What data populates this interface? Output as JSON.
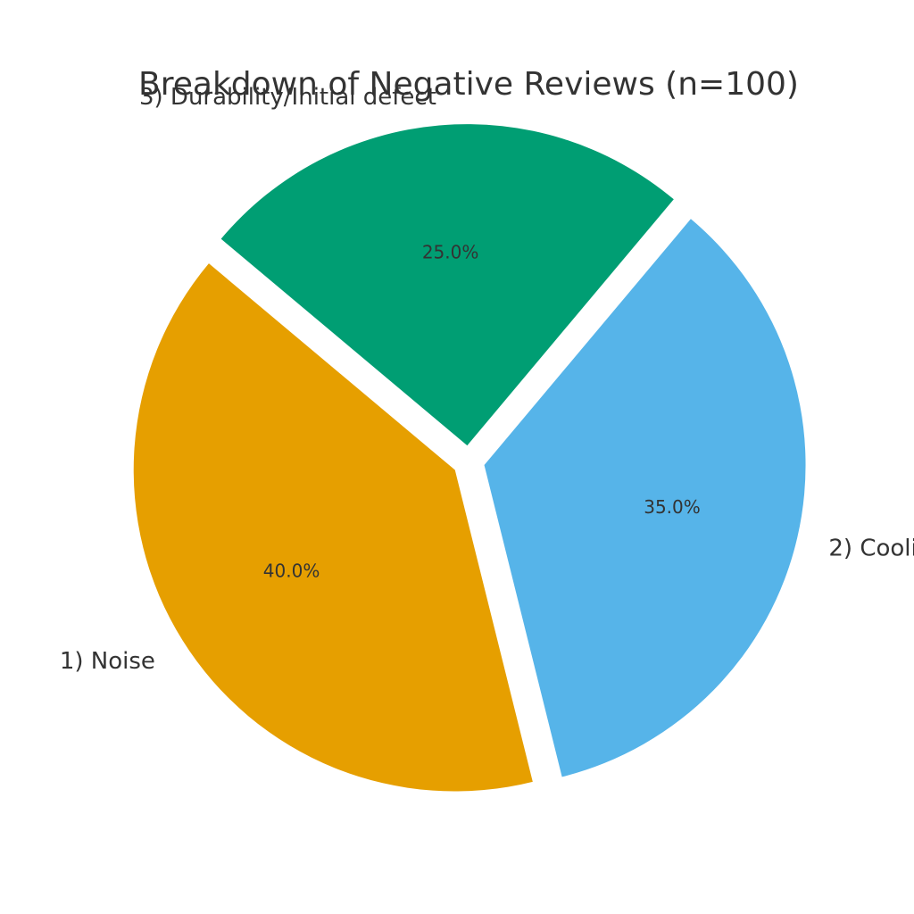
{
  "chart_data": {
    "type": "pie",
    "title": "Breakdown of Negative Reviews (n=100)",
    "categories": [
      "1) Noise",
      "2) Cooli",
      "3) Durability/Initial defect"
    ],
    "values": [
      40,
      35,
      25
    ],
    "value_labels": [
      "40.0%",
      "35.0%",
      "25.0%"
    ],
    "colors": [
      "#E69F00",
      "#56B4E9",
      "#009E73"
    ]
  }
}
